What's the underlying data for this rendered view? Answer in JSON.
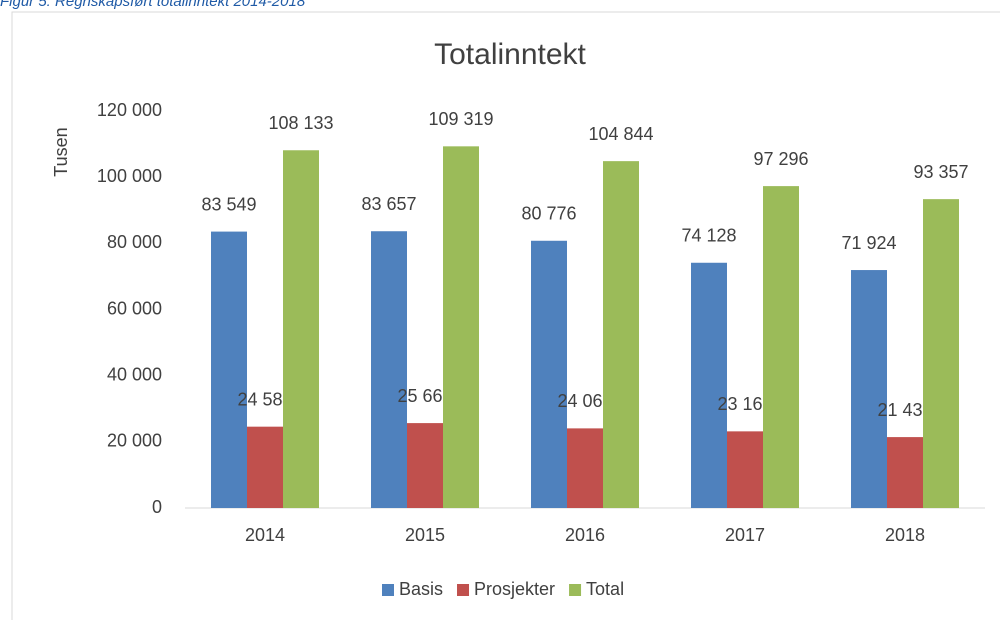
{
  "caption": "Figur 5: Regnskapsført totalinntekt 2014-2018",
  "chart_data": {
    "type": "bar",
    "title": "Totalinntekt",
    "y_label": "Tusen",
    "categories": [
      "2014",
      "2015",
      "2016",
      "2017",
      "2018"
    ],
    "series": [
      {
        "name": "Basis",
        "color": "#4f81bd",
        "values": [
          83549,
          83657,
          80776,
          74128,
          71924
        ],
        "value_labels": [
          "83 549",
          "83 657",
          "80 776",
          "74 128",
          "71 924"
        ]
      },
      {
        "name": "Prosjekter",
        "color": "#c0504d",
        "values": [
          24584,
          25662,
          24068,
          23168,
          21432
        ],
        "value_labels": [
          "24 584",
          "25 662",
          "24 068",
          "23 168",
          "21 432"
        ]
      },
      {
        "name": "Total",
        "color": "#9bbb59",
        "values": [
          108133,
          109319,
          104844,
          97296,
          93357
        ],
        "value_labels": [
          "108 133",
          "109 319",
          "104 844",
          "97 296",
          "93 357"
        ]
      }
    ],
    "ylim": [
      0,
      120000
    ],
    "yticks": [
      0,
      {
        "value": 20000,
        "label": "20 000"
      },
      {
        "value": 40000,
        "label": "40 000"
      },
      {
        "value": 60000,
        "label": "60 000"
      },
      {
        "value": 80000,
        "label": "80 000"
      },
      {
        "value": 100000,
        "label": "100 000"
      },
      {
        "value": 120000,
        "label": "120 000"
      }
    ],
    "grid": false,
    "legend": "bottom"
  }
}
